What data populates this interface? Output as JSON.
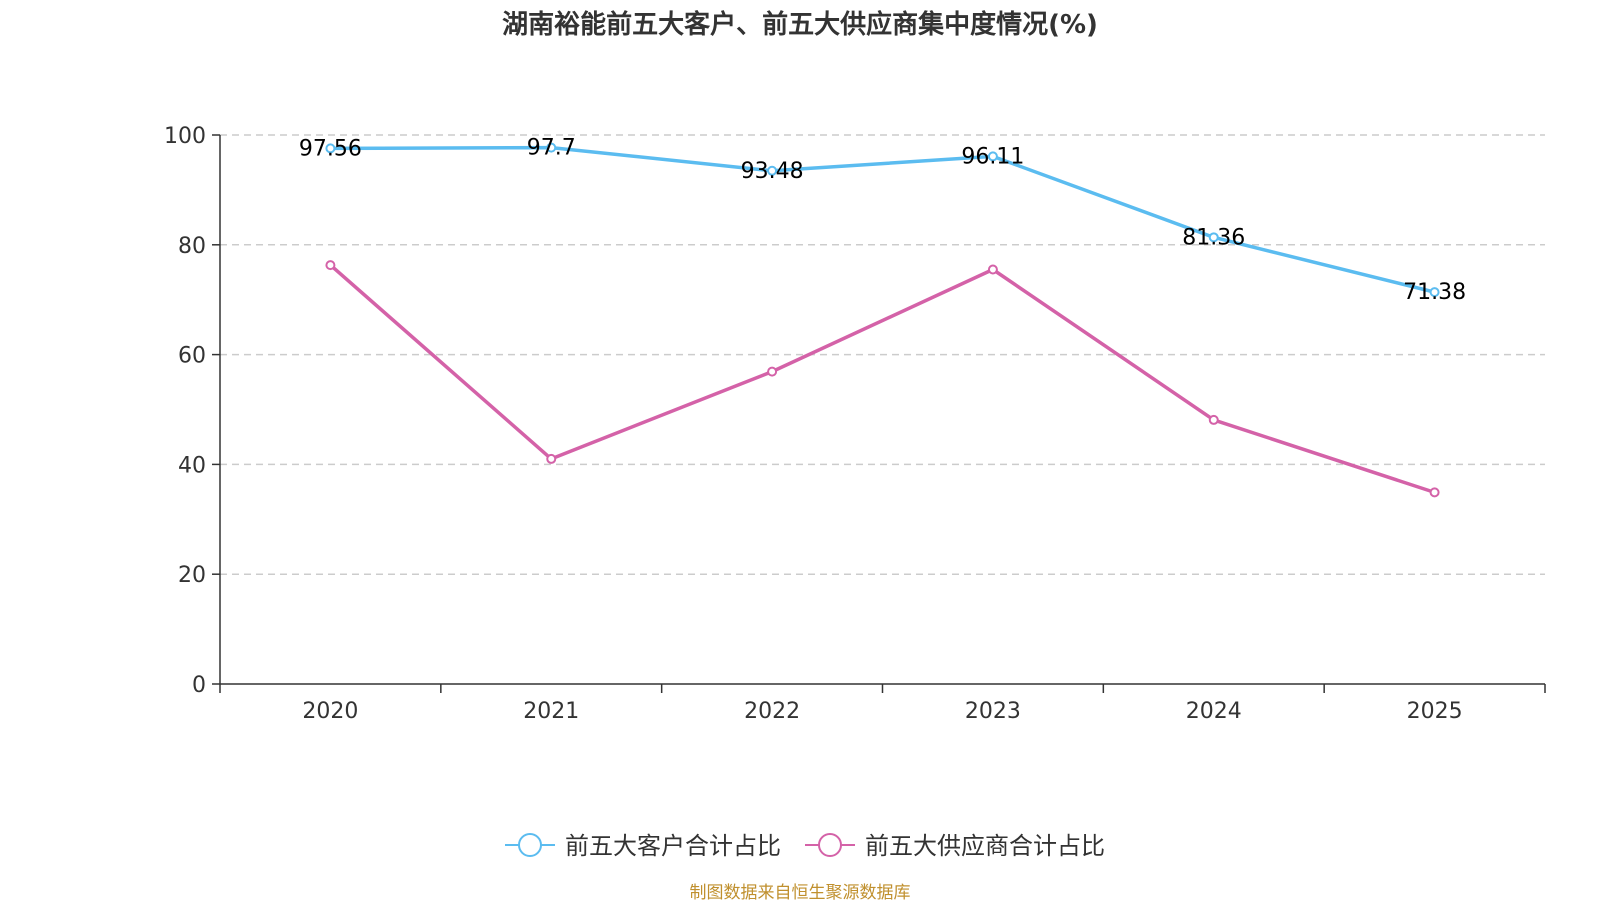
{
  "chart_data": {
    "type": "line",
    "title": "湖南裕能前五大客户、前五大供应商集中度情况(%)",
    "categories": [
      "2020",
      "2021",
      "2022",
      "2023",
      "2024",
      "2025"
    ],
    "ylim": [
      0,
      100
    ],
    "yticks": [
      0,
      20,
      40,
      60,
      80,
      100
    ],
    "grid": true,
    "legend_position": "bottom",
    "series": [
      {
        "name": "前五大客户合计占比",
        "color": "#5bbcf0",
        "values": [
          97.56,
          97.7,
          93.48,
          96.11,
          81.36,
          71.38
        ],
        "labels": [
          "97.56",
          "97.7",
          "93.48",
          "96.11",
          "81.36",
          "71.38"
        ],
        "show_labels": true
      },
      {
        "name": "前五大供应商合计占比",
        "color": "#d462a8",
        "values": [
          76.3,
          41.0,
          56.9,
          75.5,
          48.1,
          34.9
        ],
        "show_labels": false
      }
    ]
  },
  "source": "制图数据来自恒生聚源数据库"
}
